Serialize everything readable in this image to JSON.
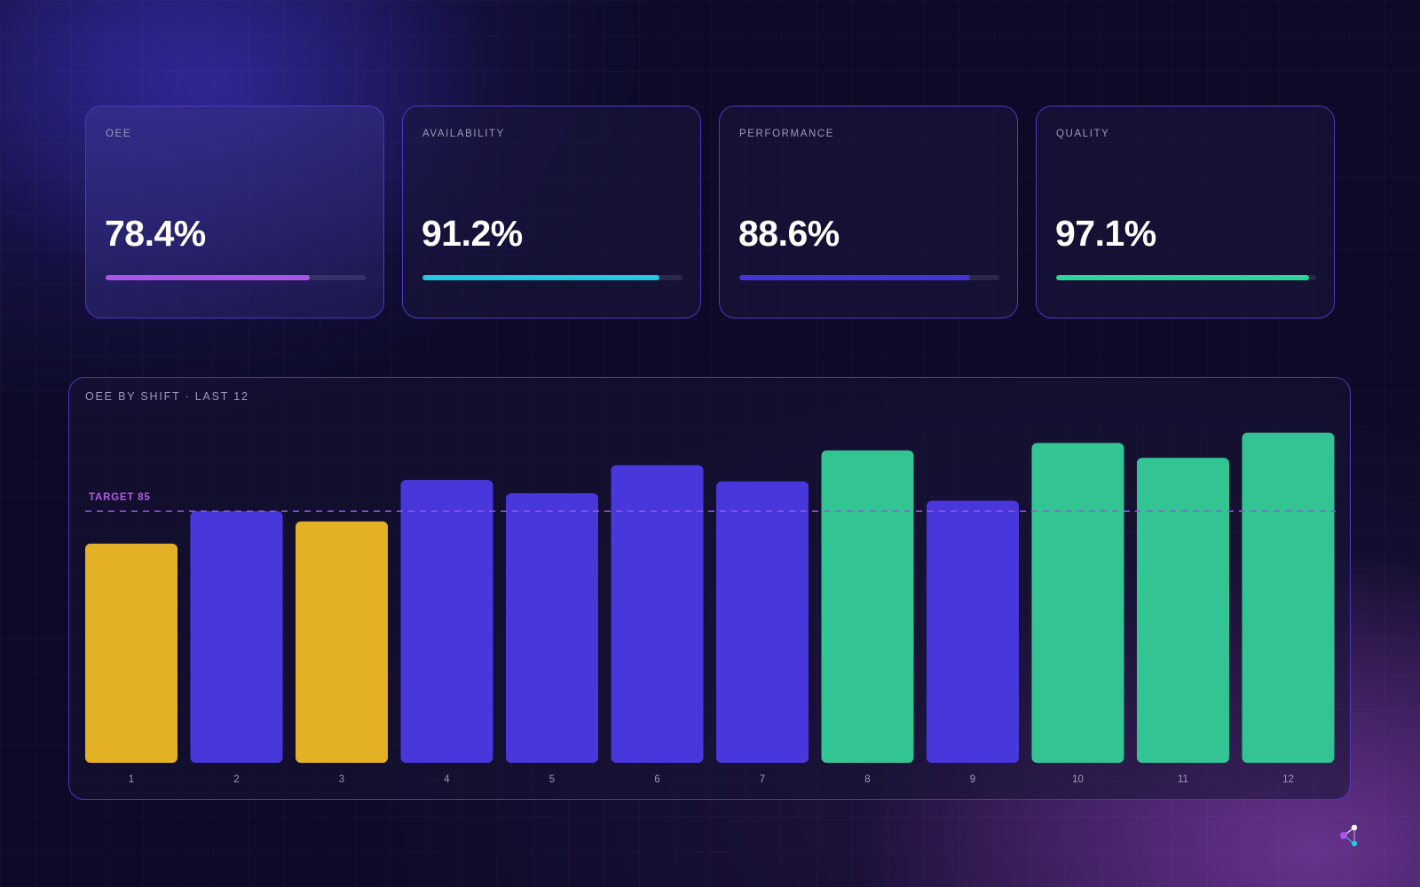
{
  "kpis": [
    {
      "label": "OEE",
      "value": "78.4%",
      "progress": 78.4,
      "color": "#a855e8"
    },
    {
      "label": "AVAILABILITY",
      "value": "91.2%",
      "progress": 91.2,
      "color": "#22c8e0"
    },
    {
      "label": "PERFORMANCE",
      "value": "88.6%",
      "progress": 88.6,
      "color": "#4433d6"
    },
    {
      "label": "QUALITY",
      "value": "97.1%",
      "progress": 97.1,
      "color": "#2ed39a"
    }
  ],
  "chart_data": {
    "type": "bar",
    "title": "OEE BY SHIFT · LAST 12",
    "categories": [
      "1",
      "2",
      "3",
      "4",
      "5",
      "6",
      "7",
      "8",
      "9",
      "10",
      "11",
      "12"
    ],
    "values": [
      74,
      85,
      81.5,
      95.5,
      91,
      100.5,
      95,
      105.5,
      88.5,
      108,
      103,
      111.5
    ],
    "ylim": [
      0,
      115
    ],
    "target": {
      "label": "TARGET 85",
      "value": 85
    },
    "grid": false,
    "legend": false,
    "colors": {
      "below_threshold": "#e3b026",
      "normal": "#4838dc",
      "above_target": "#33c493",
      "target_line": "#9b52e2",
      "target_label": "#b45ae8",
      "tick_label": "#9c9ab8"
    },
    "bar_colors": [
      "below_threshold",
      "normal",
      "below_threshold",
      "normal",
      "normal",
      "normal",
      "normal",
      "above_target",
      "normal",
      "above_target",
      "above_target",
      "above_target"
    ]
  },
  "brand": {
    "icon": "share-nodes-icon",
    "colors": [
      "#a855e8",
      "#ffffff",
      "#22c8e0"
    ]
  }
}
